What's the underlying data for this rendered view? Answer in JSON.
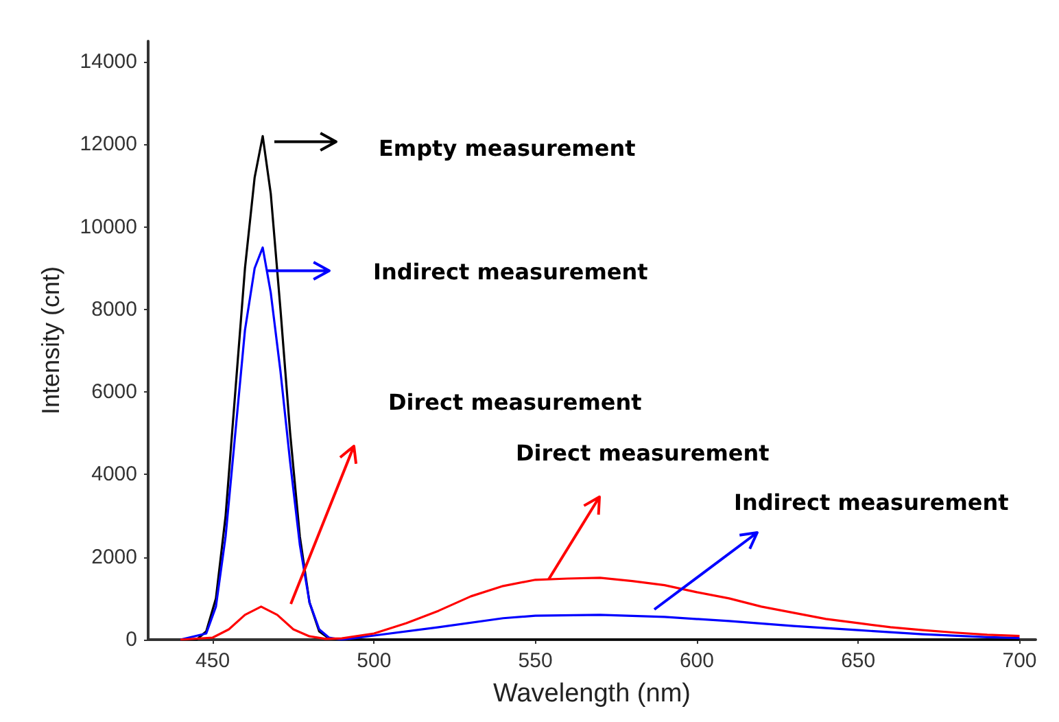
{
  "chart_data": {
    "type": "line",
    "xlabel": "Wavelength (nm)",
    "ylabel": "Intensity (cnt)",
    "xlim": [
      430,
      705
    ],
    "xticks": [
      450,
      500,
      550,
      600,
      650,
      700
    ],
    "ylim": [
      0,
      14500
    ],
    "yticks": [
      0,
      2000,
      4000,
      6000,
      8000,
      10000,
      12000,
      14000
    ],
    "grid": false,
    "marker": "none",
    "line_style": "solid",
    "annotations": [
      "Empty measurement",
      "Indirect measurement",
      "Direct measurement",
      "Direct measurement",
      "Indirect measurement"
    ],
    "series": [
      {
        "color": "#000000",
        "x": [
          440,
          445,
          448,
          451,
          454,
          457,
          460,
          463,
          465.5,
          468,
          471,
          474,
          477,
          480,
          483,
          486,
          490,
          500,
          700
        ],
        "values": [
          0,
          0,
          200,
          1000,
          3000,
          6000,
          9000,
          11200,
          12200,
          10800,
          8000,
          5000,
          2500,
          900,
          200,
          30,
          0,
          0,
          0
        ]
      },
      {
        "color": "#0000ff",
        "x": [
          440,
          448,
          451,
          454,
          457,
          460,
          463,
          465.5,
          468,
          471,
          474,
          477,
          480,
          483,
          486,
          490,
          500,
          520,
          540,
          550,
          570,
          590,
          610,
          630,
          650,
          670,
          690,
          700
        ],
        "values": [
          0,
          150,
          800,
          2500,
          5000,
          7500,
          9000,
          9500,
          8400,
          6500,
          4300,
          2300,
          900,
          250,
          50,
          0,
          100,
          300,
          520,
          580,
          600,
          550,
          450,
          330,
          230,
          130,
          60,
          40
        ]
      },
      {
        "color": "#ff0000",
        "x": [
          440,
          450,
          455,
          460,
          465,
          470,
          475,
          480,
          485,
          490,
          500,
          510,
          520,
          530,
          540,
          550,
          560,
          570,
          580,
          590,
          600,
          610,
          620,
          630,
          640,
          650,
          660,
          670,
          680,
          690,
          700
        ],
        "values": [
          0,
          50,
          250,
          600,
          800,
          600,
          250,
          80,
          20,
          30,
          150,
          400,
          700,
          1050,
          1300,
          1450,
          1480,
          1500,
          1420,
          1320,
          1150,
          1000,
          800,
          650,
          500,
          400,
          300,
          230,
          170,
          120,
          90
        ]
      }
    ]
  }
}
